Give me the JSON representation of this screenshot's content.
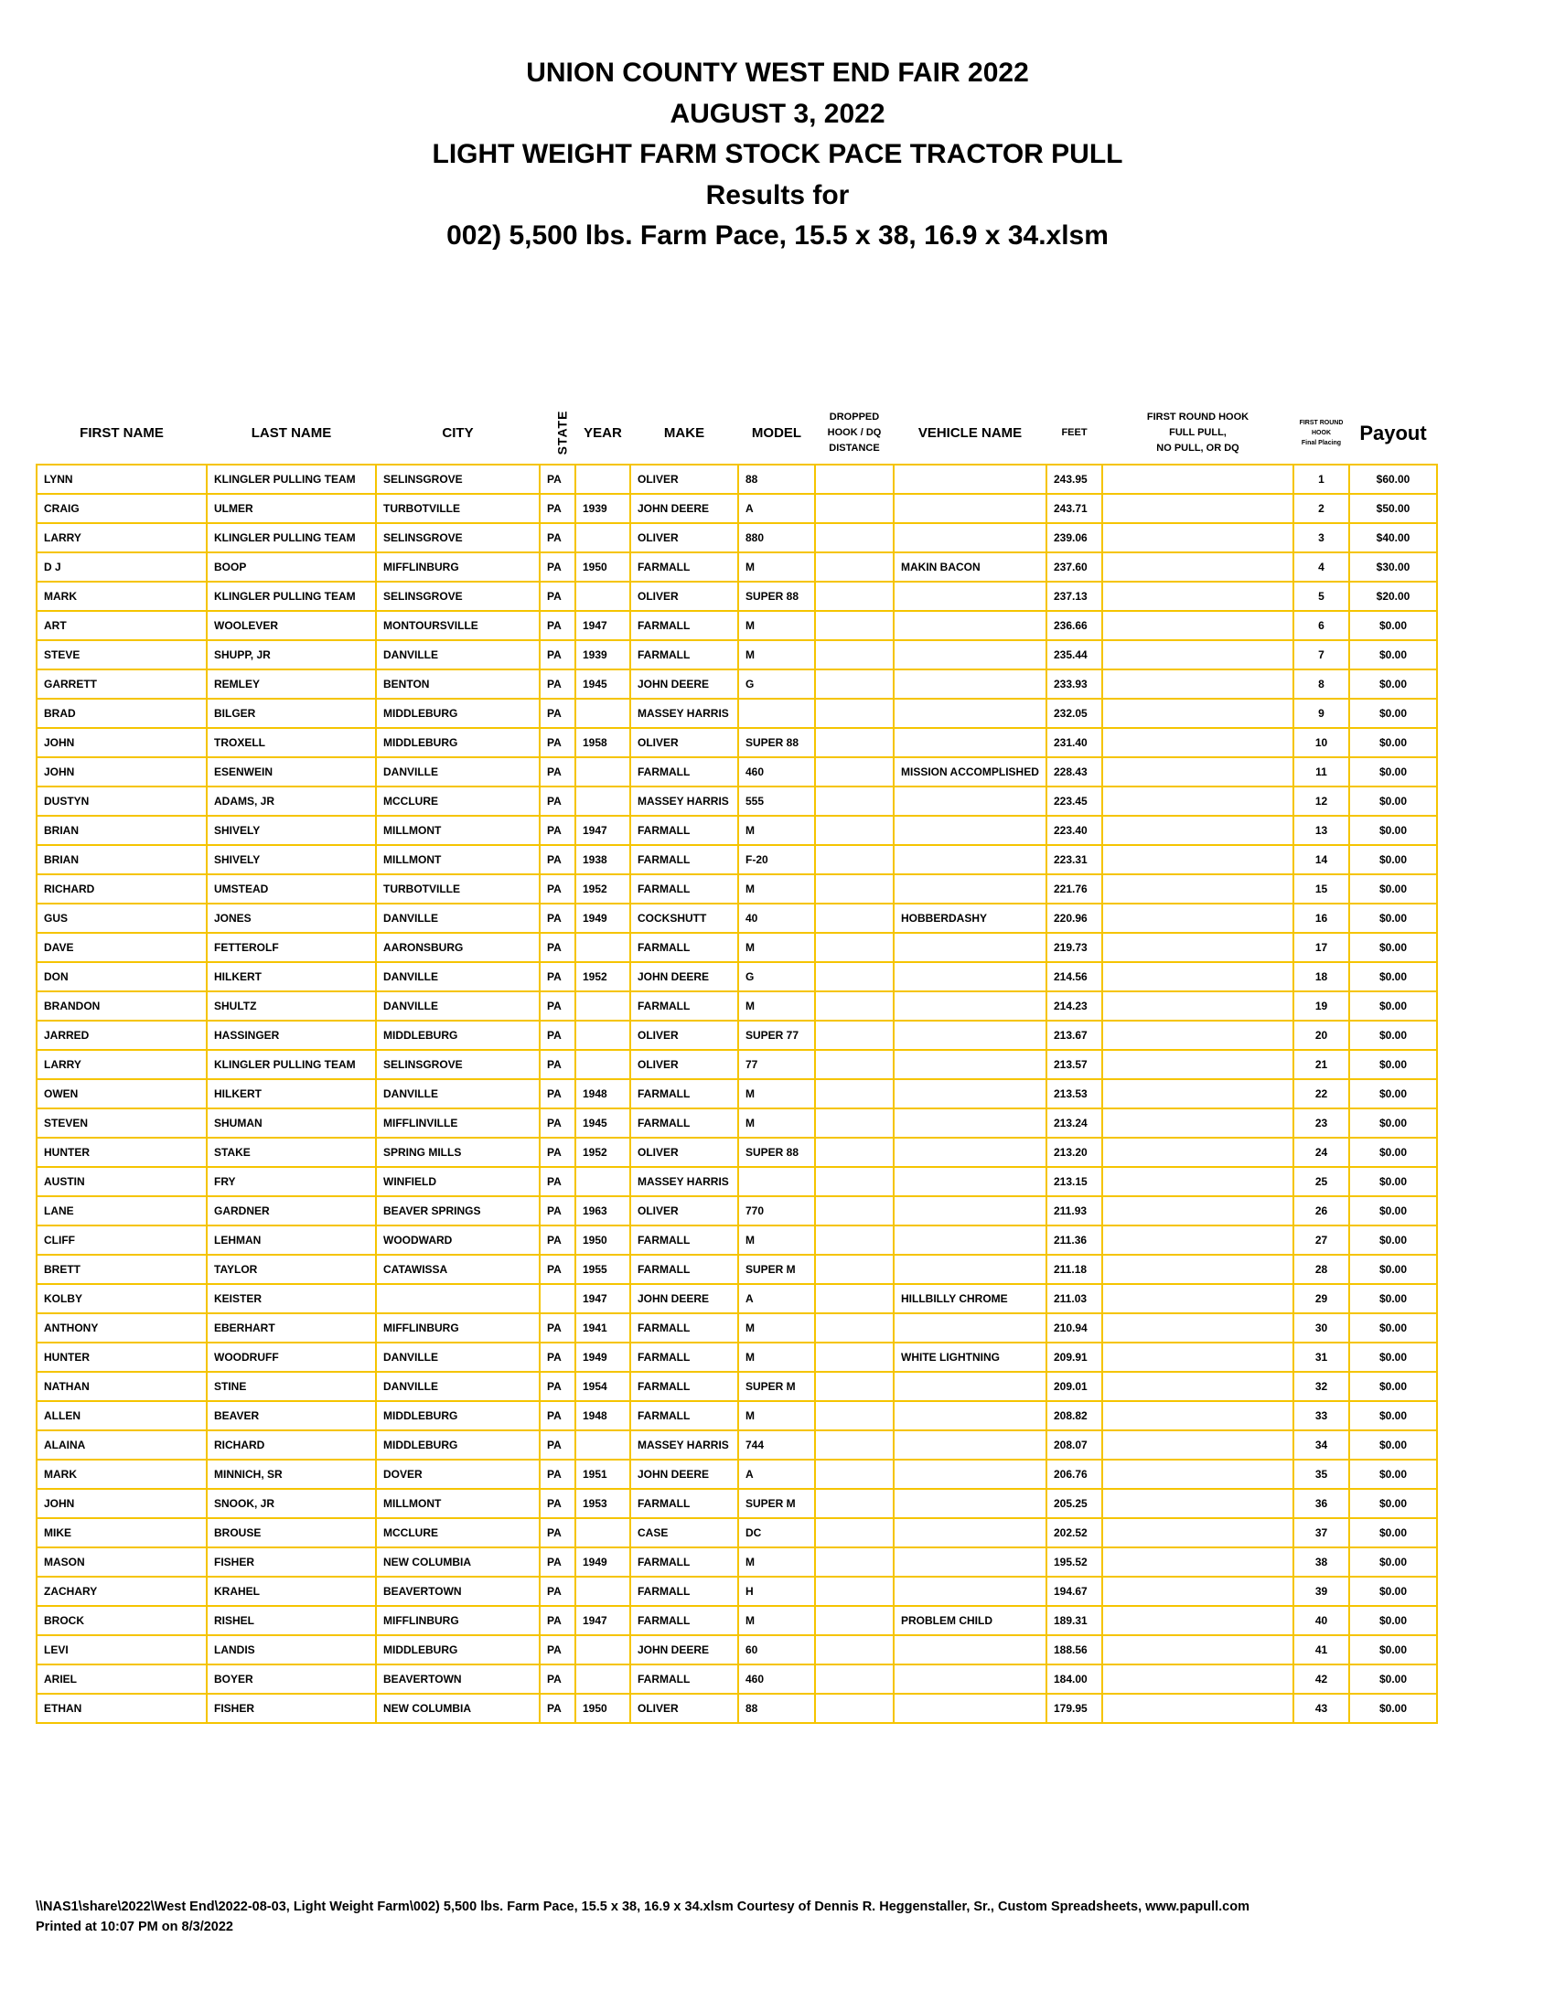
{
  "header": {
    "title_lines": [
      "UNION COUNTY WEST END FAIR 2022",
      "AUGUST 3, 2022",
      "LIGHT WEIGHT FARM STOCK PACE TRACTOR PULL",
      "Results for",
      "002) 5,500 lbs. Farm Pace, 15.5 x 38, 16.9 x 34.xlsm"
    ]
  },
  "colors": {
    "grid": "#f5c400"
  },
  "table": {
    "columns": {
      "first_name": "FIRST NAME",
      "last_name": "LAST NAME",
      "city": "CITY",
      "state": "STATE",
      "year": "YEAR",
      "make": "MAKE",
      "model": "MODEL",
      "dropped": [
        "DROPPED",
        "HOOK / DQ",
        "DISTANCE"
      ],
      "vehicle_name": "VEHICLE NAME",
      "feet": "FEET",
      "first_round": [
        "FIRST ROUND HOOK",
        "FULL PULL,",
        "NO PULL, OR DQ"
      ],
      "placing": [
        "FIRST ROUND",
        "HOOK",
        "Final Placing"
      ],
      "payout": "Payout"
    },
    "rows": [
      [
        "LYNN",
        "KLINGLER PULLING TEAM",
        "SELINSGROVE",
        "PA",
        "",
        "OLIVER",
        "88",
        "",
        "",
        "243.95",
        "",
        "1",
        "$60.00"
      ],
      [
        "CRAIG",
        "ULMER",
        "TURBOTVILLE",
        "PA",
        "1939",
        "JOHN DEERE",
        "A",
        "",
        "",
        "243.71",
        "",
        "2",
        "$50.00"
      ],
      [
        "LARRY",
        "KLINGLER PULLING TEAM",
        "SELINSGROVE",
        "PA",
        "",
        "OLIVER",
        "880",
        "",
        "",
        "239.06",
        "",
        "3",
        "$40.00"
      ],
      [
        "D J",
        "BOOP",
        "MIFFLINBURG",
        "PA",
        "1950",
        "FARMALL",
        "M",
        "",
        "MAKIN BACON",
        "237.60",
        "",
        "4",
        "$30.00"
      ],
      [
        "MARK",
        "KLINGLER PULLING TEAM",
        "SELINSGROVE",
        "PA",
        "",
        "OLIVER",
        "SUPER 88",
        "",
        "",
        "237.13",
        "",
        "5",
        "$20.00"
      ],
      [
        "ART",
        "WOOLEVER",
        "MONTOURSVILLE",
        "PA",
        "1947",
        "FARMALL",
        "M",
        "",
        "",
        "236.66",
        "",
        "6",
        "$0.00"
      ],
      [
        "STEVE",
        "SHUPP, JR",
        "DANVILLE",
        "PA",
        "1939",
        "FARMALL",
        "M",
        "",
        "",
        "235.44",
        "",
        "7",
        "$0.00"
      ],
      [
        "GARRETT",
        "REMLEY",
        "BENTON",
        "PA",
        "1945",
        "JOHN DEERE",
        "G",
        "",
        "",
        "233.93",
        "",
        "8",
        "$0.00"
      ],
      [
        "BRAD",
        "BILGER",
        "MIDDLEBURG",
        "PA",
        "",
        "MASSEY HARRIS",
        "",
        "",
        "",
        "232.05",
        "",
        "9",
        "$0.00"
      ],
      [
        "JOHN",
        "TROXELL",
        "MIDDLEBURG",
        "PA",
        "1958",
        "OLIVER",
        "SUPER 88",
        "",
        "",
        "231.40",
        "",
        "10",
        "$0.00"
      ],
      [
        "JOHN",
        "ESENWEIN",
        "DANVILLE",
        "PA",
        "",
        "FARMALL",
        "460",
        "",
        "MISSION ACCOMPLISHED",
        "228.43",
        "",
        "11",
        "$0.00"
      ],
      [
        "DUSTYN",
        "ADAMS, JR",
        "MCCLURE",
        "PA",
        "",
        "MASSEY HARRIS",
        "555",
        "",
        "",
        "223.45",
        "",
        "12",
        "$0.00"
      ],
      [
        "BRIAN",
        "SHIVELY",
        "MILLMONT",
        "PA",
        "1947",
        "FARMALL",
        "M",
        "",
        "",
        "223.40",
        "",
        "13",
        "$0.00"
      ],
      [
        "BRIAN",
        "SHIVELY",
        "MILLMONT",
        "PA",
        "1938",
        "FARMALL",
        "F-20",
        "",
        "",
        "223.31",
        "",
        "14",
        "$0.00"
      ],
      [
        "RICHARD",
        "UMSTEAD",
        "TURBOTVILLE",
        "PA",
        "1952",
        "FARMALL",
        "M",
        "",
        "",
        "221.76",
        "",
        "15",
        "$0.00"
      ],
      [
        "GUS",
        "JONES",
        "DANVILLE",
        "PA",
        "1949",
        "COCKSHUTT",
        "40",
        "",
        "HOBBERDASHY",
        "220.96",
        "",
        "16",
        "$0.00"
      ],
      [
        "DAVE",
        "FETTEROLF",
        "AARONSBURG",
        "PA",
        "",
        "FARMALL",
        "M",
        "",
        "",
        "219.73",
        "",
        "17",
        "$0.00"
      ],
      [
        "DON",
        "HILKERT",
        "DANVILLE",
        "PA",
        "1952",
        "JOHN DEERE",
        "G",
        "",
        "",
        "214.56",
        "",
        "18",
        "$0.00"
      ],
      [
        "BRANDON",
        "SHULTZ",
        "DANVILLE",
        "PA",
        "",
        "FARMALL",
        "M",
        "",
        "",
        "214.23",
        "",
        "19",
        "$0.00"
      ],
      [
        "JARRED",
        "HASSINGER",
        "MIDDLEBURG",
        "PA",
        "",
        "OLIVER",
        "SUPER 77",
        "",
        "",
        "213.67",
        "",
        "20",
        "$0.00"
      ],
      [
        "LARRY",
        "KLINGLER PULLING TEAM",
        "SELINSGROVE",
        "PA",
        "",
        "OLIVER",
        "77",
        "",
        "",
        "213.57",
        "",
        "21",
        "$0.00"
      ],
      [
        "OWEN",
        "HILKERT",
        "DANVILLE",
        "PA",
        "1948",
        "FARMALL",
        "M",
        "",
        "",
        "213.53",
        "",
        "22",
        "$0.00"
      ],
      [
        "STEVEN",
        "SHUMAN",
        "MIFFLINVILLE",
        "PA",
        "1945",
        "FARMALL",
        "M",
        "",
        "",
        "213.24",
        "",
        "23",
        "$0.00"
      ],
      [
        "HUNTER",
        "STAKE",
        "SPRING MILLS",
        "PA",
        "1952",
        "OLIVER",
        "SUPER 88",
        "",
        "",
        "213.20",
        "",
        "24",
        "$0.00"
      ],
      [
        "AUSTIN",
        "FRY",
        "WINFIELD",
        "PA",
        "",
        "MASSEY HARRIS",
        "",
        "",
        "",
        "213.15",
        "",
        "25",
        "$0.00"
      ],
      [
        "LANE",
        "GARDNER",
        "BEAVER SPRINGS",
        "PA",
        "1963",
        "OLIVER",
        "770",
        "",
        "",
        "211.93",
        "",
        "26",
        "$0.00"
      ],
      [
        "CLIFF",
        "LEHMAN",
        "WOODWARD",
        "PA",
        "1950",
        "FARMALL",
        "M",
        "",
        "",
        "211.36",
        "",
        "27",
        "$0.00"
      ],
      [
        "BRETT",
        "TAYLOR",
        "CATAWISSA",
        "PA",
        "1955",
        "FARMALL",
        "SUPER M",
        "",
        "",
        "211.18",
        "",
        "28",
        "$0.00"
      ],
      [
        "KOLBY",
        "KEISTER",
        "",
        "",
        "1947",
        "JOHN DEERE",
        "A",
        "",
        "HILLBILLY CHROME",
        "211.03",
        "",
        "29",
        "$0.00"
      ],
      [
        "ANTHONY",
        "EBERHART",
        "MIFFLINBURG",
        "PA",
        "1941",
        "FARMALL",
        "M",
        "",
        "",
        "210.94",
        "",
        "30",
        "$0.00"
      ],
      [
        "HUNTER",
        "WOODRUFF",
        "DANVILLE",
        "PA",
        "1949",
        "FARMALL",
        "M",
        "",
        "WHITE LIGHTNING",
        "209.91",
        "",
        "31",
        "$0.00"
      ],
      [
        "NATHAN",
        "STINE",
        "DANVILLE",
        "PA",
        "1954",
        "FARMALL",
        "SUPER M",
        "",
        "",
        "209.01",
        "",
        "32",
        "$0.00"
      ],
      [
        "ALLEN",
        "BEAVER",
        "MIDDLEBURG",
        "PA",
        "1948",
        "FARMALL",
        "M",
        "",
        "",
        "208.82",
        "",
        "33",
        "$0.00"
      ],
      [
        "ALAINA",
        "RICHARD",
        "MIDDLEBURG",
        "PA",
        "",
        "MASSEY HARRIS",
        "744",
        "",
        "",
        "208.07",
        "",
        "34",
        "$0.00"
      ],
      [
        "MARK",
        "MINNICH, SR",
        "DOVER",
        "PA",
        "1951",
        "JOHN DEERE",
        "A",
        "",
        "",
        "206.76",
        "",
        "35",
        "$0.00"
      ],
      [
        "JOHN",
        "SNOOK, JR",
        "MILLMONT",
        "PA",
        "1953",
        "FARMALL",
        "SUPER M",
        "",
        "",
        "205.25",
        "",
        "36",
        "$0.00"
      ],
      [
        "MIKE",
        "BROUSE",
        "MCCLURE",
        "PA",
        "",
        "CASE",
        "DC",
        "",
        "",
        "202.52",
        "",
        "37",
        "$0.00"
      ],
      [
        "MASON",
        "FISHER",
        "NEW COLUMBIA",
        "PA",
        "1949",
        "FARMALL",
        "M",
        "",
        "",
        "195.52",
        "",
        "38",
        "$0.00"
      ],
      [
        "ZACHARY",
        "KRAHEL",
        "BEAVERTOWN",
        "PA",
        "",
        "FARMALL",
        "H",
        "",
        "",
        "194.67",
        "",
        "39",
        "$0.00"
      ],
      [
        "BROCK",
        "RISHEL",
        "MIFFLINBURG",
        "PA",
        "1947",
        "FARMALL",
        "M",
        "",
        "PROBLEM CHILD",
        "189.31",
        "",
        "40",
        "$0.00"
      ],
      [
        "LEVI",
        "LANDIS",
        "MIDDLEBURG",
        "PA",
        "",
        "JOHN DEERE",
        "60",
        "",
        "",
        "188.56",
        "",
        "41",
        "$0.00"
      ],
      [
        "ARIEL",
        "BOYER",
        "BEAVERTOWN",
        "PA",
        "",
        "FARMALL",
        "460",
        "",
        "",
        "184.00",
        "",
        "42",
        "$0.00"
      ],
      [
        "ETHAN",
        "FISHER",
        "NEW COLUMBIA",
        "PA",
        "1950",
        "OLIVER",
        "88",
        "",
        "",
        "179.95",
        "",
        "43",
        "$0.00"
      ]
    ]
  },
  "footer": {
    "path_line": "\\\\NAS1\\share\\2022\\West End\\2022-08-03, Light Weight Farm\\002) 5,500 lbs. Farm Pace, 15.5 x 38, 16.9 x 34.xlsm  Courtesy of Dennis R. Heggenstaller, Sr., Custom Spreadsheets, www.papull.com",
    "printed": "Printed at 10:07 PM on 8/3/2022"
  }
}
